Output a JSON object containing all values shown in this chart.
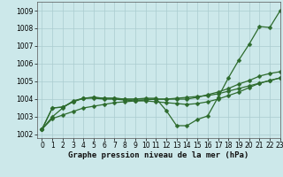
{
  "title": "Graphe pression niveau de la mer (hPa)",
  "background_color": "#cce8ea",
  "grid_color": "#aacccf",
  "line_color": "#2d6b2d",
  "xlim": [
    -0.5,
    23
  ],
  "ylim": [
    1001.8,
    1009.5
  ],
  "yticks": [
    1002,
    1003,
    1004,
    1005,
    1006,
    1007,
    1008,
    1009
  ],
  "xticks": [
    0,
    1,
    2,
    3,
    4,
    5,
    6,
    7,
    8,
    9,
    10,
    11,
    12,
    13,
    14,
    15,
    16,
    17,
    18,
    19,
    20,
    21,
    22,
    23
  ],
  "series": [
    [
      1002.3,
      1003.0,
      1003.5,
      1003.9,
      1004.05,
      1004.1,
      1004.05,
      1004.05,
      1004.0,
      1004.0,
      1004.05,
      1004.05,
      1003.35,
      1002.5,
      1002.5,
      1002.85,
      1003.05,
      1004.1,
      1005.2,
      1006.2,
      1007.1,
      1008.1,
      1008.05,
      1009.0
    ],
    [
      1002.3,
      1003.5,
      1003.55,
      1003.85,
      1004.05,
      1004.1,
      1004.05,
      1004.05,
      1004.0,
      1004.0,
      1004.0,
      1004.0,
      1004.0,
      1004.0,
      1004.0,
      1004.1,
      1004.25,
      1004.4,
      1004.6,
      1004.85,
      1005.05,
      1005.3,
      1005.45,
      1005.55
    ],
    [
      1002.3,
      1003.5,
      1003.55,
      1003.85,
      1004.05,
      1004.05,
      1004.0,
      1004.0,
      1003.95,
      1003.9,
      1003.9,
      1003.85,
      1003.8,
      1003.75,
      1003.7,
      1003.75,
      1003.85,
      1004.0,
      1004.2,
      1004.4,
      1004.65,
      1004.9,
      1005.05,
      1005.2
    ],
    [
      1002.3,
      1002.9,
      1003.1,
      1003.3,
      1003.5,
      1003.6,
      1003.7,
      1003.8,
      1003.85,
      1003.9,
      1003.95,
      1004.0,
      1004.0,
      1004.05,
      1004.1,
      1004.15,
      1004.2,
      1004.3,
      1004.45,
      1004.6,
      1004.75,
      1004.9,
      1005.05,
      1005.2
    ]
  ],
  "marker": "D",
  "markersize": 2.5,
  "linewidth": 0.9,
  "tick_labelsize": 5.5,
  "xlabel_fontsize": 6.5
}
